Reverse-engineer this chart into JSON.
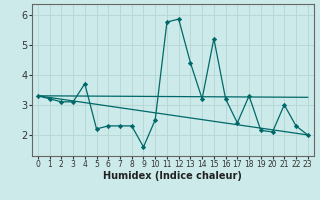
{
  "xlabel": "Humidex (Indice chaleur)",
  "bg_color": "#cceaea",
  "grid_color": "#b8d8d8",
  "line_color": "#006868",
  "xlim": [
    -0.5,
    23.5
  ],
  "ylim": [
    1.3,
    6.35
  ],
  "yticks": [
    2,
    3,
    4,
    5,
    6
  ],
  "xticks": [
    0,
    1,
    2,
    3,
    4,
    5,
    6,
    7,
    8,
    9,
    10,
    11,
    12,
    13,
    14,
    15,
    16,
    17,
    18,
    19,
    20,
    21,
    22,
    23
  ],
  "series": [
    {
      "x": [
        0,
        1,
        2,
        3,
        4,
        5,
        6,
        7,
        8,
        9,
        10,
        11,
        12,
        13,
        14,
        15,
        16,
        17,
        18,
        19,
        20,
        21,
        22,
        23
      ],
      "y": [
        3.3,
        3.2,
        3.1,
        3.1,
        3.7,
        2.2,
        2.3,
        2.3,
        2.3,
        1.6,
        2.5,
        5.75,
        5.85,
        4.4,
        3.2,
        5.2,
        3.2,
        2.4,
        3.3,
        2.15,
        2.1,
        3.0,
        2.3,
        2.0
      ]
    },
    {
      "x": [
        0,
        23
      ],
      "y": [
        3.3,
        3.25
      ]
    },
    {
      "x": [
        0,
        23
      ],
      "y": [
        3.3,
        2.0
      ]
    }
  ]
}
